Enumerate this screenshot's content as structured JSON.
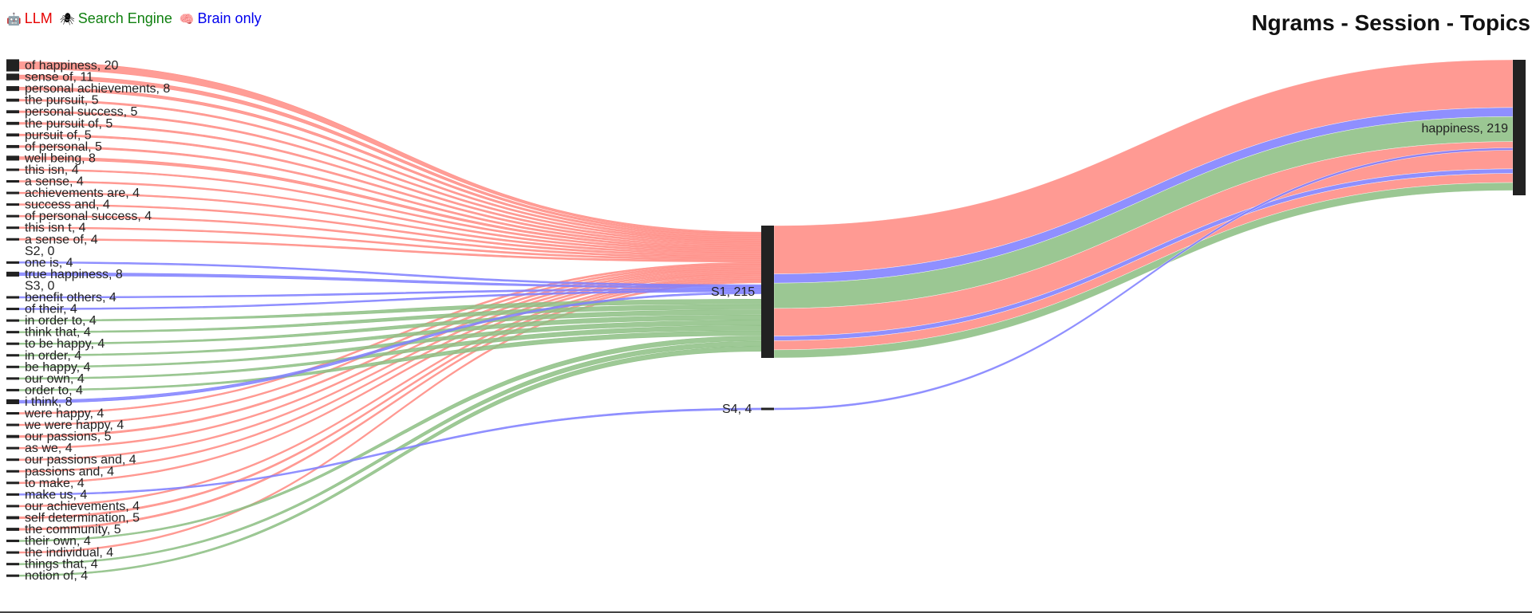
{
  "legend": [
    {
      "icon": "robot-icon",
      "glyph": "🤖",
      "label": "LLM",
      "color": "#e60000"
    },
    {
      "icon": "spider-icon",
      "glyph": "🕷",
      "label": "Search Engine",
      "color": "#108010"
    },
    {
      "icon": "brain-icon",
      "glyph": "🧠",
      "label": "Brain only",
      "color": "#0000ee"
    }
  ],
  "title": "Ngrams - Session - Topics",
  "chart_data": {
    "type": "sankey",
    "title": "Ngrams - Session - Topics",
    "colors": {
      "LLM": "#ff8c84",
      "Search Engine": "#8dbf84",
      "Brain only": "#8080ff",
      "node": "#222222"
    },
    "ngrams": [
      {
        "label": "of happiness, 20",
        "value": 20,
        "groups": [
          "LLM"
        ]
      },
      {
        "label": "sense of, 11",
        "value": 11,
        "groups": [
          "LLM"
        ]
      },
      {
        "label": "personal achievements, 8",
        "value": 8,
        "groups": [
          "LLM"
        ]
      },
      {
        "label": "the pursuit, 5",
        "value": 5,
        "groups": [
          "LLM"
        ]
      },
      {
        "label": "personal success, 5",
        "value": 5,
        "groups": [
          "LLM"
        ]
      },
      {
        "label": "the pursuit of, 5",
        "value": 5,
        "groups": [
          "LLM"
        ]
      },
      {
        "label": "pursuit of, 5",
        "value": 5,
        "groups": [
          "LLM"
        ]
      },
      {
        "label": "of personal, 5",
        "value": 5,
        "groups": [
          "LLM"
        ]
      },
      {
        "label": "well being, 8",
        "value": 8,
        "groups": [
          "LLM"
        ]
      },
      {
        "label": "this isn, 4",
        "value": 4,
        "groups": [
          "LLM"
        ]
      },
      {
        "label": "a sense, 4",
        "value": 4,
        "groups": [
          "LLM"
        ]
      },
      {
        "label": "achievements are, 4",
        "value": 4,
        "groups": [
          "LLM"
        ]
      },
      {
        "label": "success and, 4",
        "value": 4,
        "groups": [
          "LLM"
        ]
      },
      {
        "label": "of personal success, 4",
        "value": 4,
        "groups": [
          "LLM"
        ]
      },
      {
        "label": "this isn t, 4",
        "value": 4,
        "groups": [
          "LLM"
        ]
      },
      {
        "label": "a sense of, 4",
        "value": 4,
        "groups": [
          "LLM"
        ]
      },
      {
        "label": "S2, 0",
        "value": 0,
        "groups": []
      },
      {
        "label": "one is, 4",
        "value": 4,
        "groups": [
          "Brain only"
        ]
      },
      {
        "label": "true happiness, 8",
        "value": 8,
        "groups": [
          "Brain only"
        ]
      },
      {
        "label": "S3, 0",
        "value": 0,
        "groups": []
      },
      {
        "label": "benefit others, 4",
        "value": 4,
        "groups": [
          "Brain only"
        ]
      },
      {
        "label": "of their, 4",
        "value": 4,
        "groups": [
          "Brain only"
        ]
      },
      {
        "label": "in order to, 4",
        "value": 4,
        "groups": [
          "Search Engine"
        ]
      },
      {
        "label": "think that, 4",
        "value": 4,
        "groups": [
          "Search Engine"
        ]
      },
      {
        "label": "to be happy, 4",
        "value": 4,
        "groups": [
          "Search Engine"
        ]
      },
      {
        "label": "in order, 4",
        "value": 4,
        "groups": [
          "Search Engine"
        ]
      },
      {
        "label": "be happy, 4",
        "value": 4,
        "groups": [
          "Search Engine"
        ]
      },
      {
        "label": "our own, 4",
        "value": 4,
        "groups": [
          "Search Engine"
        ]
      },
      {
        "label": "order to, 4",
        "value": 4,
        "groups": [
          "Search Engine"
        ]
      },
      {
        "label": "i think, 8",
        "value": 8,
        "groups": [
          "Brain only"
        ]
      },
      {
        "label": "were happy, 4",
        "value": 4,
        "groups": [
          "LLM"
        ]
      },
      {
        "label": "we were happy, 4",
        "value": 4,
        "groups": [
          "LLM"
        ]
      },
      {
        "label": "our passions, 5",
        "value": 5,
        "groups": [
          "LLM"
        ]
      },
      {
        "label": "as we, 4",
        "value": 4,
        "groups": [
          "LLM"
        ]
      },
      {
        "label": "our passions and, 4",
        "value": 4,
        "groups": [
          "LLM"
        ]
      },
      {
        "label": "passions and, 4",
        "value": 4,
        "groups": [
          "LLM"
        ]
      },
      {
        "label": "to make, 4",
        "value": 4,
        "groups": [
          "LLM"
        ]
      },
      {
        "label": "make us, 4",
        "value": 4,
        "groups": [
          "Brain only"
        ]
      },
      {
        "label": "our achievements, 4",
        "value": 4,
        "groups": [
          "LLM"
        ]
      },
      {
        "label": "self determination, 5",
        "value": 5,
        "groups": [
          "LLM"
        ]
      },
      {
        "label": "the community, 5",
        "value": 5,
        "groups": [
          "LLM"
        ]
      },
      {
        "label": "their own, 4",
        "value": 4,
        "groups": [
          "Search Engine"
        ]
      },
      {
        "label": "the individual, 4",
        "value": 4,
        "groups": [
          "LLM"
        ]
      },
      {
        "label": "things that, 4",
        "value": 4,
        "groups": [
          "Search Engine"
        ]
      },
      {
        "label": "notion of, 4",
        "value": 4,
        "groups": [
          "Search Engine"
        ]
      }
    ],
    "sessions": [
      {
        "label": "S1, 215",
        "value": 215
      },
      {
        "label": "S4, 4",
        "value": 4
      }
    ],
    "topics": [
      {
        "label": "happiness, 219",
        "value": 219
      }
    ],
    "session_to_topic": [
      {
        "source": "S1, 215",
        "target": "happiness, 219",
        "group": "LLM",
        "value": 42
      },
      {
        "source": "S1, 215",
        "target": "happiness, 219",
        "group": "Brain only",
        "value": 8
      },
      {
        "source": "S1, 215",
        "target": "happiness, 219",
        "group": "Search Engine",
        "value": 22
      },
      {
        "source": "S1, 215",
        "target": "happiness, 219",
        "group": "LLM",
        "value": 24
      },
      {
        "source": "S1, 215",
        "target": "happiness, 219",
        "group": "Brain only",
        "value": 4
      },
      {
        "source": "S1, 215",
        "target": "happiness, 219",
        "group": "LLM",
        "value": 8
      },
      {
        "source": "S1, 215",
        "target": "happiness, 219",
        "group": "Search Engine",
        "value": 7
      },
      {
        "source": "S4, 4",
        "target": "happiness, 219",
        "group": "Brain only",
        "value": 4
      }
    ]
  }
}
